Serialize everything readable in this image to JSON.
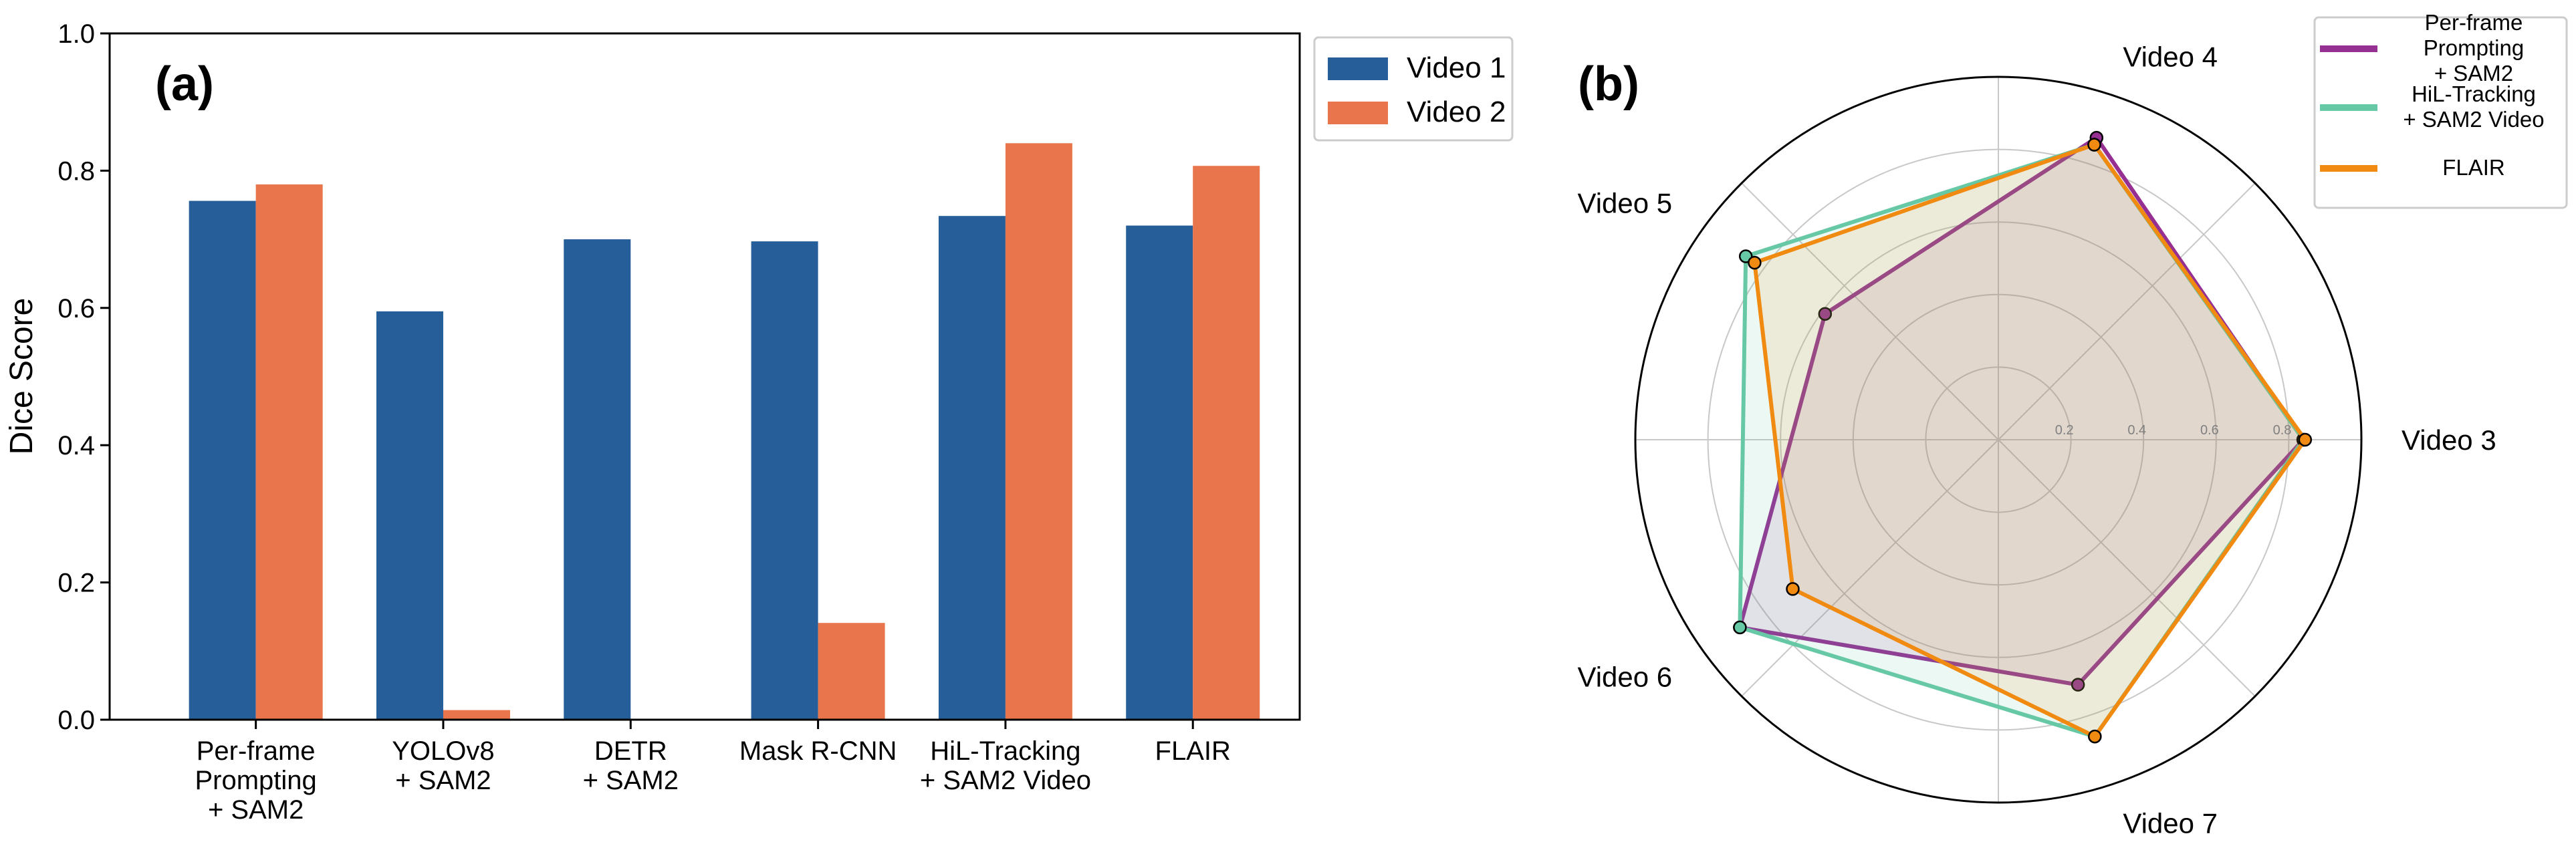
{
  "chart_data": [
    {
      "type": "bar",
      "panel_label": "(a)",
      "ylabel": "Dice Score",
      "ylim": [
        0,
        1.0
      ],
      "yticks": [
        "0.0",
        "0.2",
        "0.4",
        "0.6",
        "0.8",
        "1.0"
      ],
      "categories": [
        [
          "Per-frame",
          "Prompting",
          "+ SAM2"
        ],
        [
          "YOLOv8",
          "+ SAM2"
        ],
        [
          "DETR",
          "+ SAM2"
        ],
        [
          "Mask R-CNN"
        ],
        [
          "HiL-Tracking",
          "+ SAM2 Video"
        ],
        [
          "FLAIR"
        ]
      ],
      "series": [
        {
          "name": "Video 1",
          "color": "#255e99",
          "values": [
            0.756,
            0.595,
            0.7,
            0.697,
            0.734,
            0.72
          ]
        },
        {
          "name": "Video 2",
          "color": "#e8754b",
          "values": [
            0.78,
            0.014,
            null,
            0.141,
            0.84,
            0.807
          ]
        }
      ],
      "legend": "outside upper-right"
    },
    {
      "type": "radar",
      "panel_label": "(b)",
      "axes": [
        "Video 3",
        "Video 4",
        "Video 5",
        "Video 6",
        "Video 7"
      ],
      "rlim": [
        0,
        1.0
      ],
      "rticks": [
        "0.2",
        "0.4",
        "0.6",
        "0.8"
      ],
      "series": [
        {
          "name": [
            "Per-frame",
            "Prompting",
            "+ SAM2"
          ],
          "color": "#952f92",
          "values": [
            0.84,
            0.875,
            0.59,
            0.88,
            0.71
          ]
        },
        {
          "name": [
            "HiL-Tracking",
            "+ SAM2 Video"
          ],
          "color": "#66c8a4",
          "values": [
            0.84,
            0.855,
            0.86,
            0.88,
            0.86
          ]
        },
        {
          "name": [
            "FLAIR"
          ],
          "color": "#f08a10",
          "values": [
            0.845,
            0.855,
            0.83,
            0.7,
            0.86
          ]
        }
      ],
      "legend": "upper-right"
    }
  ]
}
